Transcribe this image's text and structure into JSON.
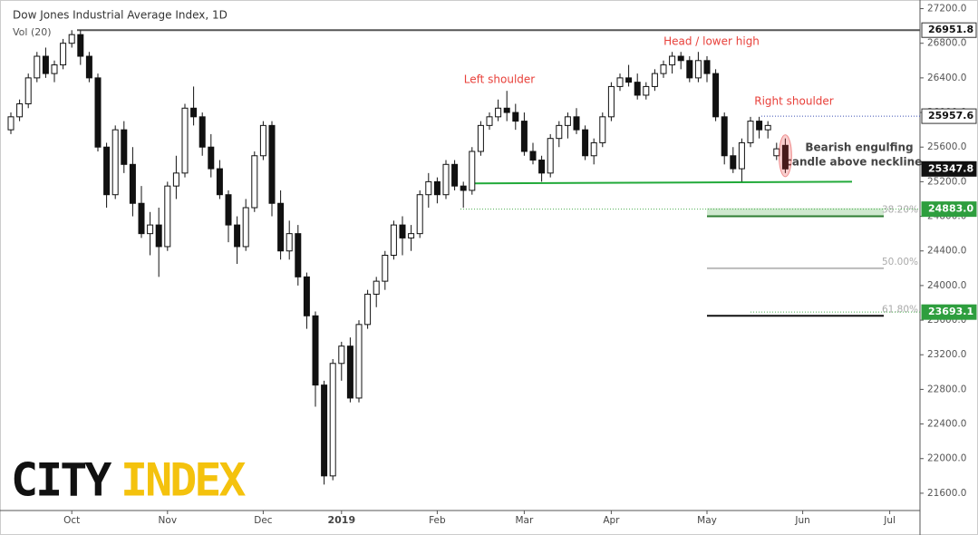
{
  "chart_data": {
    "type": "candlestick",
    "title": "Dow Jones Industrial Average Index, 1D",
    "subtitle": "Vol (20)",
    "categories": [
      null,
      null,
      null,
      null,
      null,
      null,
      null,
      "Oct",
      null,
      null,
      null,
      null,
      null,
      null,
      null,
      null,
      null,
      null,
      "Nov",
      null,
      null,
      null,
      null,
      null,
      null,
      null,
      null,
      null,
      null,
      "Dec",
      null,
      null,
      null,
      null,
      null,
      null,
      null,
      null,
      "2019",
      null,
      null,
      null,
      null,
      null,
      null,
      null,
      null,
      null,
      null,
      "Feb",
      null,
      null,
      null,
      null,
      null,
      null,
      null,
      null,
      null,
      "Mar",
      null,
      null,
      null,
      null,
      null,
      null,
      null,
      null,
      null,
      "Apr",
      null,
      null,
      null,
      null,
      null,
      null,
      null,
      null,
      null,
      null,
      "May",
      null,
      null,
      null,
      null,
      null,
      null,
      null,
      null,
      null,
      null,
      "Jun",
      null,
      null,
      null,
      null,
      null,
      null,
      null,
      null,
      null,
      "Jul",
      null,
      null,
      null
    ],
    "series": [
      {
        "open": [
          25800,
          25950,
          26100,
          26400,
          26650,
          26450,
          26550,
          26800,
          26900,
          26650,
          26400,
          25600,
          25050,
          25800,
          25400,
          24950,
          24600,
          24700,
          24450,
          25150,
          25300,
          26050,
          25950,
          25600,
          25350,
          25050,
          24700,
          24450,
          24900,
          25500,
          25850,
          24950,
          24400,
          24600,
          24100,
          23650,
          22850,
          21800,
          23100,
          23300,
          22700,
          23550,
          23900,
          24050,
          24350,
          24700,
          24550,
          24600,
          25050,
          25200,
          25050,
          25400,
          25150,
          25100,
          25550,
          25850,
          25950,
          26050,
          26000,
          25900,
          25550,
          25450,
          25300,
          25700,
          25850,
          25950,
          25800,
          25500,
          25650,
          25950,
          26300,
          26400,
          26350,
          26200,
          26300,
          26450,
          26550,
          26650,
          26600,
          26400,
          26600,
          26450,
          25950,
          25500,
          25350,
          25650,
          25900,
          25800,
          25500,
          25620,
          null,
          null,
          null,
          null,
          null,
          null,
          null,
          null,
          null,
          null,
          null,
          null,
          null,
          null,
          null
        ],
        "high": [
          26000,
          26150,
          26450,
          26700,
          26750,
          26600,
          26850,
          26951,
          26950,
          26700,
          26450,
          25650,
          25850,
          25900,
          25600,
          25150,
          24850,
          24900,
          25200,
          25500,
          26100,
          26300,
          26000,
          25750,
          25450,
          25100,
          24800,
          25000,
          25550,
          25900,
          25900,
          25100,
          24750,
          24700,
          24150,
          23700,
          22900,
          23150,
          23350,
          23400,
          23600,
          23950,
          24100,
          24400,
          24750,
          24800,
          24700,
          25100,
          25300,
          25250,
          25450,
          25450,
          25200,
          25600,
          25900,
          26000,
          26150,
          26250,
          26100,
          26000,
          25650,
          25500,
          25750,
          25900,
          26000,
          26050,
          25850,
          25700,
          26000,
          26350,
          26450,
          26550,
          26450,
          26350,
          26500,
          26600,
          26700,
          26700,
          26650,
          26700,
          26650,
          26500,
          26000,
          25600,
          25700,
          25950,
          25950,
          25900,
          25650,
          25700,
          null,
          null,
          null,
          null,
          null,
          null,
          null,
          null,
          null,
          null,
          null,
          null,
          null,
          null,
          null
        ],
        "low": [
          25750,
          25900,
          26050,
          26350,
          26400,
          26350,
          26500,
          26750,
          26550,
          26350,
          25550,
          24900,
          25000,
          25300,
          24800,
          24550,
          24350,
          24100,
          24400,
          25000,
          25250,
          25850,
          25500,
          25250,
          25000,
          24500,
          24250,
          24400,
          24850,
          25450,
          24800,
          24300,
          24300,
          24000,
          23500,
          22600,
          21700,
          21750,
          22900,
          22650,
          22650,
          23500,
          23750,
          23950,
          24300,
          24350,
          24400,
          24550,
          24900,
          24950,
          25000,
          25100,
          24900,
          25050,
          25500,
          25800,
          25900,
          25900,
          25800,
          25500,
          25400,
          25200,
          25250,
          25600,
          25700,
          25750,
          25450,
          25400,
          25600,
          25900,
          26250,
          26300,
          26150,
          26150,
          26250,
          26400,
          26450,
          26500,
          26350,
          26350,
          26350,
          25900,
          25400,
          25300,
          25200,
          25600,
          25700,
          25700,
          25450,
          25300,
          null,
          null,
          null,
          null,
          null,
          null,
          null,
          null,
          null,
          null,
          null,
          null,
          null,
          null,
          null
        ],
        "close": [
          25950,
          26100,
          26400,
          26650,
          26450,
          26550,
          26800,
          26900,
          26650,
          26400,
          25600,
          25050,
          25800,
          25400,
          24950,
          24600,
          24700,
          24450,
          25150,
          25300,
          26050,
          25950,
          25600,
          25350,
          25050,
          24700,
          24450,
          24900,
          25500,
          25850,
          24950,
          24400,
          24600,
          24100,
          23650,
          22850,
          21800,
          23100,
          23300,
          22700,
          23550,
          23900,
          24050,
          24350,
          24700,
          24550,
          24600,
          25050,
          25200,
          25050,
          25400,
          25150,
          25100,
          25550,
          25850,
          25950,
          26050,
          26000,
          25900,
          25550,
          25450,
          25300,
          25700,
          25850,
          25950,
          25800,
          25500,
          25650,
          25950,
          26300,
          26400,
          26350,
          26200,
          26300,
          26450,
          26550,
          26650,
          26600,
          26400,
          26600,
          26450,
          25950,
          25500,
          25350,
          25650,
          25900,
          25800,
          25850,
          25580,
          25347.8,
          null,
          null,
          null,
          null,
          null,
          null,
          null,
          null,
          null,
          null,
          null,
          null,
          null,
          null,
          null
        ]
      }
    ],
    "ylim": [
      21400,
      27300
    ],
    "yticks": [
      {
        "value": 21600,
        "label": "21600.0"
      },
      {
        "value": 22000,
        "label": "22000.0"
      },
      {
        "value": 22400,
        "label": "22400.0"
      },
      {
        "value": 22800,
        "label": "22800.0"
      },
      {
        "value": 23200,
        "label": "23200.0"
      },
      {
        "value": 23600,
        "label": "23600.0"
      },
      {
        "value": 24000,
        "label": "24000.0"
      },
      {
        "value": 24400,
        "label": "24400.0"
      },
      {
        "value": 24800,
        "label": "24800.0"
      },
      {
        "value": 25200,
        "label": "25200.0"
      },
      {
        "value": 25600,
        "label": "25600.0"
      },
      {
        "value": 26000,
        "label": "26000.0"
      },
      {
        "value": 26400,
        "label": "26400.0"
      },
      {
        "value": 26800,
        "label": "26800.0"
      },
      {
        "value": 27200,
        "label": "27200.0"
      }
    ],
    "levels": [
      {
        "value": 26951.8,
        "label": "26951.8"
      },
      {
        "value": 25957.6,
        "label": "25957.6"
      },
      {
        "value": 25347.8,
        "label": "25347.8"
      },
      {
        "value": 24883.0,
        "label": "24883.0"
      },
      {
        "value": 23693.1,
        "label": "23693.1"
      }
    ],
    "fib_levels": [
      {
        "value": 24800,
        "label": "38.20%"
      },
      {
        "value": 24200,
        "label": "50.00%"
      },
      {
        "value": 23650,
        "label": "61.80%"
      }
    ],
    "neckline": [
      25180,
      25200
    ],
    "annotations": [
      "Left shoulder",
      "Head / lower high",
      "Right shoulder",
      "Bearish engulfing",
      "candle above neckline"
    ],
    "logo": [
      "CITY",
      "INDEX"
    ]
  }
}
